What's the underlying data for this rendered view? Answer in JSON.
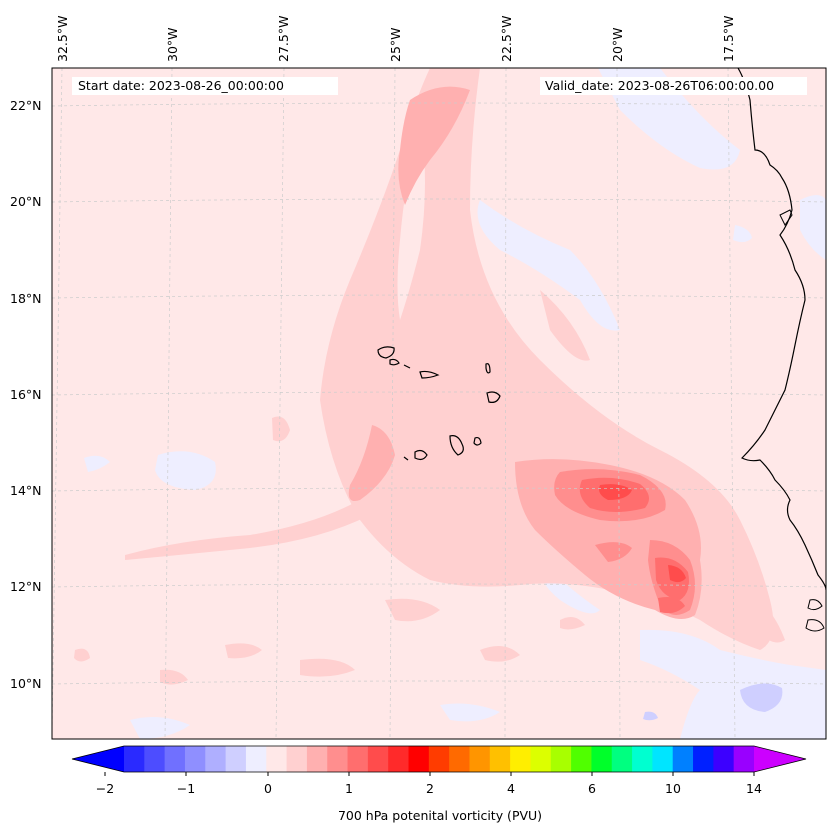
{
  "map": {
    "start_label": "Start date: 2023-08-26_00:00:00",
    "valid_label": "Valid_date: 2023-08-26T06:00:00.00",
    "longitude_labels": [
      "32.5°W",
      "30°W",
      "27.5°W",
      "25°W",
      "22.5°W",
      "20°W",
      "17.5°W"
    ],
    "latitude_labels": [
      "22°N",
      "20°N",
      "18°N",
      "16°N",
      "14°N",
      "12°N",
      "10°N"
    ],
    "background_color": "#ffe8e8",
    "coastline_color": "#000000"
  },
  "colorbar": {
    "label": "700 hPa potenital vorticity (PVU)",
    "tick_labels": [
      "−2",
      "−1",
      "0",
      "1",
      "2",
      "4",
      "6",
      "10",
      "14"
    ],
    "colors": [
      "#0000ff",
      "#2a2aff",
      "#4d4dff",
      "#7070ff",
      "#8f8fff",
      "#afafff",
      "#cfcfff",
      "#eeeeff",
      "#ffe8e8",
      "#ffd0d0",
      "#ffb0b0",
      "#ff8e8e",
      "#ff6e6e",
      "#ff4c4c",
      "#ff2a2a",
      "#ff0000",
      "#ff3c00",
      "#ff6a00",
      "#ff9500",
      "#ffc000",
      "#ffee00",
      "#dcff00",
      "#a8ff00",
      "#50ff00",
      "#00ff2a",
      "#00ff80",
      "#00ffd0",
      "#00e5ff",
      "#0080ff",
      "#0020ff",
      "#3c00ff",
      "#9900ff",
      "#cc00ff"
    ],
    "extend": "both"
  }
}
